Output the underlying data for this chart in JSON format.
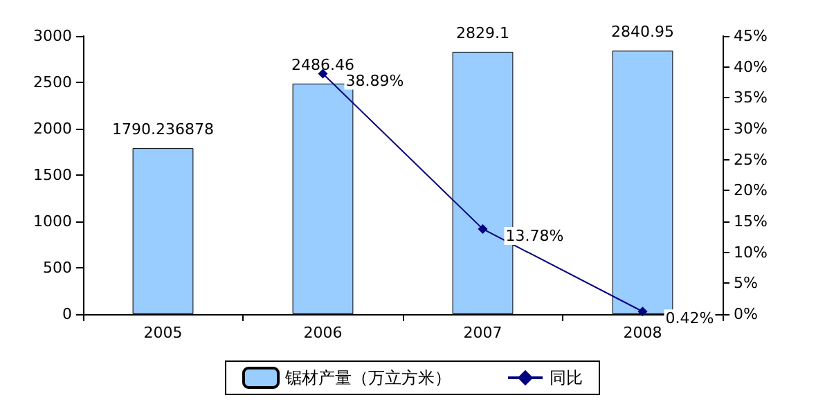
{
  "chart_data": {
    "type": "bar",
    "categories": [
      "2005",
      "2006",
      "2007",
      "2008"
    ],
    "series": [
      {
        "name": "锯材产量（万立方米）",
        "color": "#99ccff",
        "values": [
          1790.236878,
          2486.46,
          2829.1,
          2840.95
        ],
        "value_labels": [
          "1790.236878",
          "2486.46",
          "2829.1",
          "2840.95"
        ]
      },
      {
        "name": "同比",
        "type": "line",
        "axis": "y2",
        "color": "#000080",
        "values": [
          null,
          38.89,
          13.78,
          0.42
        ],
        "value_labels": [
          null,
          "38.89%",
          "13.78%",
          "0.42%"
        ]
      }
    ],
    "ylim": [
      0,
      3000
    ],
    "yticks": [
      0,
      500,
      1000,
      1500,
      2000,
      2500,
      3000
    ],
    "y2lim": [
      0,
      45
    ],
    "y2ticks": [
      {
        "value": 0,
        "label": "0%"
      },
      {
        "value": 5,
        "label": "5%"
      },
      {
        "value": 10,
        "label": "10%"
      },
      {
        "value": 15,
        "label": "15%"
      },
      {
        "value": 20,
        "label": "20%"
      },
      {
        "value": 25,
        "label": "25%"
      },
      {
        "value": 30,
        "label": "30%"
      },
      {
        "value": 35,
        "label": "35%"
      },
      {
        "value": 40,
        "label": "40%"
      },
      {
        "value": 45,
        "label": "45%"
      }
    ],
    "legend": "bottom",
    "marker": "diamond"
  }
}
